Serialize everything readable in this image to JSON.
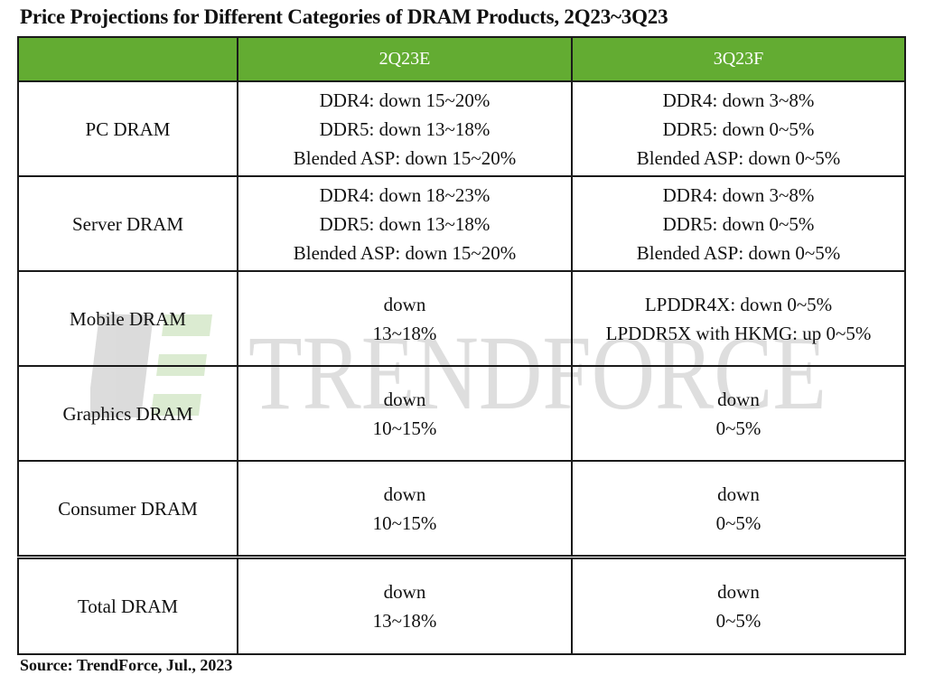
{
  "chart_data": {
    "type": "table",
    "title": "Price Projections for Different Categories of DRAM Products, 2Q23~3Q23",
    "columns": [
      "",
      "2Q23E",
      "3Q23F"
    ],
    "rows": [
      {
        "label": "PC DRAM",
        "q2": [
          "DDR4: down 15~20%",
          "DDR5: down 13~18%",
          "Blended ASP: down 15~20%"
        ],
        "q3": [
          "DDR4: down 3~8%",
          "DDR5: down 0~5%",
          "Blended ASP: down 0~5%"
        ]
      },
      {
        "label": "Server DRAM",
        "q2": [
          "DDR4: down 18~23%",
          "DDR5: down 13~18%",
          "Blended ASP: down 15~20%"
        ],
        "q3": [
          "DDR4: down 3~8%",
          "DDR5: down 0~5%",
          "Blended ASP: down 0~5%"
        ]
      },
      {
        "label": "Mobile DRAM",
        "q2": [
          "down",
          "13~18%"
        ],
        "q3": [
          "LPDDR4X: down 0~5%",
          "LPDDR5X with HKMG: up 0~5%"
        ]
      },
      {
        "label": "Graphics DRAM",
        "q2": [
          "down",
          "10~15%"
        ],
        "q3": [
          "down",
          "0~5%"
        ]
      },
      {
        "label": "Consumer DRAM",
        "q2": [
          "down",
          "10~15%"
        ],
        "q3": [
          "down",
          "0~5%"
        ]
      },
      {
        "label": "Total DRAM",
        "q2": [
          "down",
          "13~18%"
        ],
        "q3": [
          "down",
          "0~5%"
        ]
      }
    ],
    "header_color": "#63ac32"
  },
  "watermark": {
    "text": "TRENDFORCE",
    "logo": "trendforce-logo"
  },
  "source": "Source: TrendForce, Jul., 2023"
}
